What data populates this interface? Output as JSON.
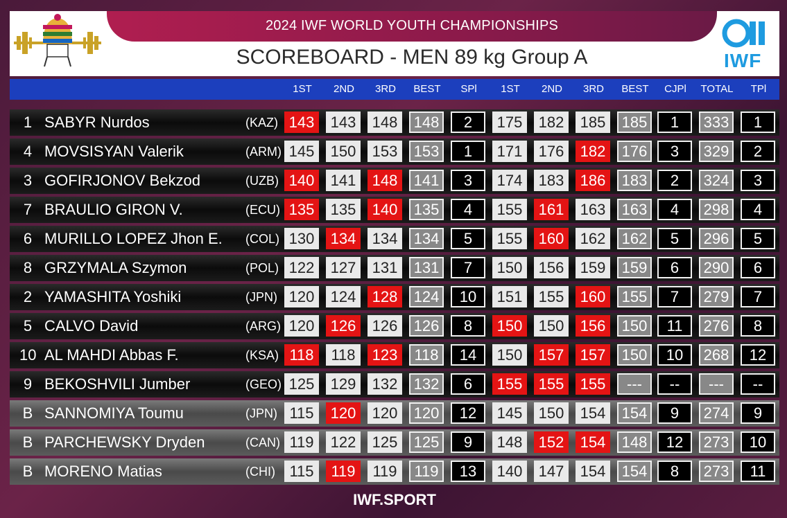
{
  "header": {
    "championship": "2024 IWF WORLD YOUTH CHAMPIONSHIPS",
    "title": "SCOREBOARD - MEN 89 kg Group A",
    "logo_text": "IWF"
  },
  "columns": [
    "1ST",
    "2ND",
    "3RD",
    "BEST",
    "SPl",
    "1ST",
    "2ND",
    "3RD",
    "BEST",
    "CJPl",
    "TOTAL",
    "TPl"
  ],
  "colors": {
    "fail": "#e41414",
    "good": "#e9e9e9",
    "header_blue": "#1c3fbd",
    "brand": "#1e9be0"
  },
  "rows": [
    {
      "rank": "1",
      "name": "SABYR Nurdos",
      "nat": "(KAZ)",
      "cells": [
        {
          "v": "143",
          "t": "red"
        },
        {
          "v": "143",
          "t": "light"
        },
        {
          "v": "148",
          "t": "light"
        },
        {
          "v": "148",
          "t": "best"
        },
        {
          "v": "2",
          "t": "rankbox"
        },
        {
          "v": "175",
          "t": "light"
        },
        {
          "v": "182",
          "t": "light"
        },
        {
          "v": "185",
          "t": "light"
        },
        {
          "v": "185",
          "t": "best"
        },
        {
          "v": "1",
          "t": "rankbox"
        },
        {
          "v": "333",
          "t": "best"
        },
        {
          "v": "1",
          "t": "rankbox"
        }
      ]
    },
    {
      "rank": "4",
      "name": "MOVSISYAN Valerik",
      "nat": "(ARM)",
      "cells": [
        {
          "v": "145",
          "t": "light"
        },
        {
          "v": "150",
          "t": "light"
        },
        {
          "v": "153",
          "t": "light"
        },
        {
          "v": "153",
          "t": "best"
        },
        {
          "v": "1",
          "t": "rankbox"
        },
        {
          "v": "171",
          "t": "light"
        },
        {
          "v": "176",
          "t": "light"
        },
        {
          "v": "182",
          "t": "red"
        },
        {
          "v": "176",
          "t": "best"
        },
        {
          "v": "3",
          "t": "rankbox"
        },
        {
          "v": "329",
          "t": "best"
        },
        {
          "v": "2",
          "t": "rankbox"
        }
      ]
    },
    {
      "rank": "3",
      "name": "GOFIRJONOV Bekzod",
      "nat": "(UZB)",
      "cells": [
        {
          "v": "140",
          "t": "red"
        },
        {
          "v": "141",
          "t": "light"
        },
        {
          "v": "148",
          "t": "red"
        },
        {
          "v": "141",
          "t": "best"
        },
        {
          "v": "3",
          "t": "rankbox"
        },
        {
          "v": "174",
          "t": "light"
        },
        {
          "v": "183",
          "t": "light"
        },
        {
          "v": "186",
          "t": "red"
        },
        {
          "v": "183",
          "t": "best"
        },
        {
          "v": "2",
          "t": "rankbox"
        },
        {
          "v": "324",
          "t": "best"
        },
        {
          "v": "3",
          "t": "rankbox"
        }
      ]
    },
    {
      "rank": "7",
      "name": "BRAULIO GIRON V.",
      "nat": "(ECU)",
      "cells": [
        {
          "v": "135",
          "t": "red"
        },
        {
          "v": "135",
          "t": "light"
        },
        {
          "v": "140",
          "t": "red"
        },
        {
          "v": "135",
          "t": "best"
        },
        {
          "v": "4",
          "t": "rankbox"
        },
        {
          "v": "155",
          "t": "light"
        },
        {
          "v": "161",
          "t": "red"
        },
        {
          "v": "163",
          "t": "light"
        },
        {
          "v": "163",
          "t": "best"
        },
        {
          "v": "4",
          "t": "rankbox"
        },
        {
          "v": "298",
          "t": "best"
        },
        {
          "v": "4",
          "t": "rankbox"
        }
      ]
    },
    {
      "rank": "6",
      "name": "MURILLO LOPEZ Jhon E.",
      "nat": "(COL)",
      "cells": [
        {
          "v": "130",
          "t": "light"
        },
        {
          "v": "134",
          "t": "red"
        },
        {
          "v": "134",
          "t": "light"
        },
        {
          "v": "134",
          "t": "best"
        },
        {
          "v": "5",
          "t": "rankbox"
        },
        {
          "v": "155",
          "t": "light"
        },
        {
          "v": "160",
          "t": "red"
        },
        {
          "v": "162",
          "t": "light"
        },
        {
          "v": "162",
          "t": "best"
        },
        {
          "v": "5",
          "t": "rankbox"
        },
        {
          "v": "296",
          "t": "best"
        },
        {
          "v": "5",
          "t": "rankbox"
        }
      ]
    },
    {
      "rank": "8",
      "name": "GRZYMALA Szymon",
      "nat": "(POL)",
      "cells": [
        {
          "v": "122",
          "t": "light"
        },
        {
          "v": "127",
          "t": "light"
        },
        {
          "v": "131",
          "t": "light"
        },
        {
          "v": "131",
          "t": "best"
        },
        {
          "v": "7",
          "t": "rankbox"
        },
        {
          "v": "150",
          "t": "light"
        },
        {
          "v": "156",
          "t": "light"
        },
        {
          "v": "159",
          "t": "light"
        },
        {
          "v": "159",
          "t": "best"
        },
        {
          "v": "6",
          "t": "rankbox"
        },
        {
          "v": "290",
          "t": "best"
        },
        {
          "v": "6",
          "t": "rankbox"
        }
      ]
    },
    {
      "rank": "2",
      "name": "YAMASHITA Yoshiki",
      "nat": "(JPN)",
      "cells": [
        {
          "v": "120",
          "t": "light"
        },
        {
          "v": "124",
          "t": "light"
        },
        {
          "v": "128",
          "t": "red"
        },
        {
          "v": "124",
          "t": "best"
        },
        {
          "v": "10",
          "t": "rankbox"
        },
        {
          "v": "151",
          "t": "light"
        },
        {
          "v": "155",
          "t": "light"
        },
        {
          "v": "160",
          "t": "red"
        },
        {
          "v": "155",
          "t": "best"
        },
        {
          "v": "7",
          "t": "rankbox"
        },
        {
          "v": "279",
          "t": "best"
        },
        {
          "v": "7",
          "t": "rankbox"
        }
      ]
    },
    {
      "rank": "5",
      "name": "CALVO David",
      "nat": "(ARG)",
      "cells": [
        {
          "v": "120",
          "t": "light"
        },
        {
          "v": "126",
          "t": "red"
        },
        {
          "v": "126",
          "t": "light"
        },
        {
          "v": "126",
          "t": "best"
        },
        {
          "v": "8",
          "t": "rankbox"
        },
        {
          "v": "150",
          "t": "red"
        },
        {
          "v": "150",
          "t": "light"
        },
        {
          "v": "156",
          "t": "red"
        },
        {
          "v": "150",
          "t": "best"
        },
        {
          "v": "11",
          "t": "rankbox"
        },
        {
          "v": "276",
          "t": "best"
        },
        {
          "v": "8",
          "t": "rankbox"
        }
      ]
    },
    {
      "rank": "10",
      "name": "AL MAHDI Abbas F.",
      "nat": "(KSA)",
      "cells": [
        {
          "v": "118",
          "t": "red"
        },
        {
          "v": "118",
          "t": "light"
        },
        {
          "v": "123",
          "t": "red"
        },
        {
          "v": "118",
          "t": "best"
        },
        {
          "v": "14",
          "t": "rankbox"
        },
        {
          "v": "150",
          "t": "light"
        },
        {
          "v": "157",
          "t": "red"
        },
        {
          "v": "157",
          "t": "red"
        },
        {
          "v": "150",
          "t": "best"
        },
        {
          "v": "10",
          "t": "rankbox"
        },
        {
          "v": "268",
          "t": "best"
        },
        {
          "v": "12",
          "t": "rankbox"
        }
      ]
    },
    {
      "rank": "9",
      "name": "BEKOSHVILI Jumber",
      "nat": "(GEO)",
      "cells": [
        {
          "v": "125",
          "t": "light"
        },
        {
          "v": "129",
          "t": "light"
        },
        {
          "v": "132",
          "t": "light"
        },
        {
          "v": "132",
          "t": "best"
        },
        {
          "v": "6",
          "t": "rankbox"
        },
        {
          "v": "155",
          "t": "red"
        },
        {
          "v": "155",
          "t": "red"
        },
        {
          "v": "155",
          "t": "red"
        },
        {
          "v": "---",
          "t": "best"
        },
        {
          "v": "--",
          "t": "rankbox"
        },
        {
          "v": "---",
          "t": "best"
        },
        {
          "v": "--",
          "t": "rankbox"
        }
      ]
    },
    {
      "rank": "B",
      "name": "SANNOMIYA Toumu",
      "nat": "(JPN)",
      "alt": true,
      "cells": [
        {
          "v": "115",
          "t": "light"
        },
        {
          "v": "120",
          "t": "red"
        },
        {
          "v": "120",
          "t": "light"
        },
        {
          "v": "120",
          "t": "best"
        },
        {
          "v": "12",
          "t": "rankbox"
        },
        {
          "v": "145",
          "t": "light"
        },
        {
          "v": "150",
          "t": "light"
        },
        {
          "v": "154",
          "t": "light"
        },
        {
          "v": "154",
          "t": "best"
        },
        {
          "v": "9",
          "t": "rankbox"
        },
        {
          "v": "274",
          "t": "best"
        },
        {
          "v": "9",
          "t": "rankbox"
        }
      ]
    },
    {
      "rank": "B",
      "name": "PARCHEWSKY Dryden",
      "nat": "(CAN)",
      "alt": true,
      "cells": [
        {
          "v": "119",
          "t": "light"
        },
        {
          "v": "122",
          "t": "light"
        },
        {
          "v": "125",
          "t": "light"
        },
        {
          "v": "125",
          "t": "best"
        },
        {
          "v": "9",
          "t": "rankbox"
        },
        {
          "v": "148",
          "t": "light"
        },
        {
          "v": "152",
          "t": "red"
        },
        {
          "v": "154",
          "t": "red"
        },
        {
          "v": "148",
          "t": "best"
        },
        {
          "v": "12",
          "t": "rankbox"
        },
        {
          "v": "273",
          "t": "best"
        },
        {
          "v": "10",
          "t": "rankbox"
        }
      ]
    },
    {
      "rank": "B",
      "name": "MORENO Matias",
      "nat": "(CHI)",
      "alt": true,
      "cells": [
        {
          "v": "115",
          "t": "light"
        },
        {
          "v": "119",
          "t": "red"
        },
        {
          "v": "119",
          "t": "light"
        },
        {
          "v": "119",
          "t": "best"
        },
        {
          "v": "13",
          "t": "rankbox"
        },
        {
          "v": "140",
          "t": "light"
        },
        {
          "v": "147",
          "t": "light"
        },
        {
          "v": "154",
          "t": "light"
        },
        {
          "v": "154",
          "t": "best"
        },
        {
          "v": "8",
          "t": "rankbox"
        },
        {
          "v": "273",
          "t": "best"
        },
        {
          "v": "11",
          "t": "rankbox"
        }
      ]
    }
  ],
  "footer": {
    "text": "IWF.SPORT"
  }
}
